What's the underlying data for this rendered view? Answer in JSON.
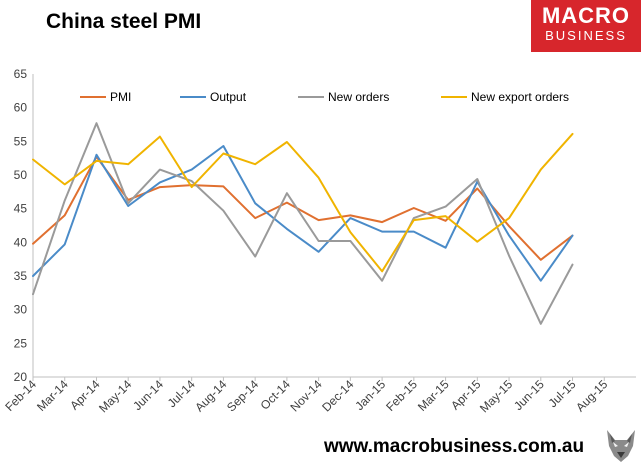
{
  "header": {
    "title": "China steel PMI"
  },
  "logo": {
    "line1": "MACRO",
    "line2": "BUSINESS",
    "color": "#d7262c"
  },
  "footer": {
    "url": "www.macrobusiness.com.au"
  },
  "chart_data": {
    "type": "line",
    "title": "China steel PMI",
    "xlabel": "",
    "ylabel": "",
    "ylim": [
      20,
      65
    ],
    "yticks": [
      20,
      25,
      30,
      35,
      40,
      45,
      50,
      55,
      60,
      65
    ],
    "grid": false,
    "legend_position": "top",
    "categories": [
      "Feb-14",
      "Mar-14",
      "Apr-14",
      "May-14",
      "Jun-14",
      "Jul-14",
      "Aug-14",
      "Sep-14",
      "Oct-14",
      "Nov-14",
      "Dec-14",
      "Jan-15",
      "Feb-15",
      "Mar-15",
      "Apr-15",
      "May-15",
      "Jun-15",
      "Jul-15",
      "Aug-15"
    ],
    "series": [
      {
        "name": "PMI",
        "color": "#e07030",
        "values": [
          39.8,
          44.0,
          52.7,
          46.3,
          48.2,
          48.5,
          48.3,
          43.6,
          45.9,
          43.3,
          44.0,
          43.0,
          45.1,
          43.2,
          48.0,
          42.4,
          37.4,
          41.0,
          null
        ]
      },
      {
        "name": "Output",
        "color": "#4a8bc8",
        "values": [
          35.0,
          39.7,
          53.0,
          45.4,
          48.9,
          50.8,
          54.3,
          45.8,
          42.0,
          38.6,
          43.6,
          41.6,
          41.6,
          39.2,
          49.0,
          41.0,
          34.3,
          41.0,
          null
        ]
      },
      {
        "name": "New orders",
        "color": "#9a9a9a",
        "values": [
          32.3,
          46.2,
          57.7,
          45.8,
          50.8,
          49.1,
          44.7,
          37.9,
          47.3,
          40.2,
          40.2,
          34.3,
          43.6,
          45.3,
          49.4,
          38.0,
          27.9,
          36.7,
          null
        ]
      },
      {
        "name": "New export orders",
        "color": "#f0b400",
        "values": [
          52.3,
          48.6,
          52.1,
          51.6,
          55.7,
          48.2,
          53.2,
          51.6,
          54.9,
          49.6,
          41.5,
          35.7,
          43.3,
          43.9,
          40.1,
          43.6,
          50.8,
          56.1,
          null
        ]
      }
    ]
  }
}
